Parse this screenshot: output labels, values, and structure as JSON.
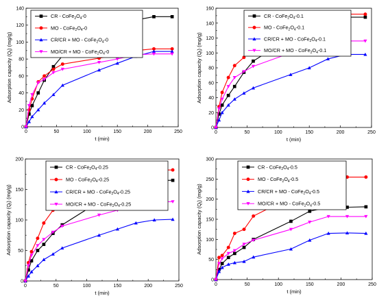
{
  "charts": [
    {
      "id": "p0",
      "type": "line",
      "xlabel": "t (min)",
      "ylabel_prefix": "Adsorption capacity (Q",
      "ylabel_sub": "t",
      "ylabel_suffix": ") (mg/g)",
      "xlim": [
        0,
        250
      ],
      "ylim": [
        0,
        140
      ],
      "xticks": [
        0,
        50,
        100,
        150,
        200,
        250
      ],
      "yticks": [
        0,
        20,
        40,
        60,
        80,
        100,
        120,
        140
      ],
      "legend_position": "top-left",
      "series": [
        {
          "lp": "CR - CoFe",
          "ls": "2",
          "lm": "O",
          "lss": "4",
          "lq": "-0",
          "color": "#000000",
          "marker": "square",
          "x": [
            0,
            5,
            10,
            20,
            30,
            45,
            60,
            120,
            150,
            180,
            210,
            240
          ],
          "y": [
            0,
            15,
            25,
            40,
            55,
            71,
            84,
            105,
            118,
            126,
            130,
            130
          ]
        },
        {
          "lp": "MO - CoFe",
          "ls": "2",
          "lm": "O",
          "lss": "4",
          "lq": "-0",
          "color": "#ff0000",
          "marker": "circle",
          "x": [
            0,
            5,
            10,
            20,
            30,
            45,
            60,
            120,
            150,
            180,
            210,
            240
          ],
          "y": [
            0,
            20,
            33,
            53,
            60,
            68,
            74,
            81,
            85,
            90,
            92,
            92
          ]
        },
        {
          "lp": "CR/CR + MO - CoFe",
          "ls": "2",
          "lm": "O",
          "lss": "4",
          "lq": "-0",
          "color": "#0000ff",
          "marker": "triangle",
          "x": [
            0,
            5,
            10,
            20,
            30,
            45,
            60,
            120,
            150,
            180,
            210,
            240
          ],
          "y": [
            0,
            6,
            12,
            20,
            28,
            38,
            49,
            67,
            75,
            83,
            89,
            89
          ]
        },
        {
          "lp": "MO/CR + MO - CoFe",
          "ls": "2",
          "lm": "O",
          "lss": "4",
          "lq": "-0",
          "color": "#ff00ff",
          "marker": "triangle-down",
          "x": [
            0,
            5,
            10,
            20,
            30,
            45,
            60,
            120,
            150,
            180,
            210,
            240
          ],
          "y": [
            0,
            25,
            38,
            52,
            56,
            64,
            68,
            76,
            80,
            85,
            86,
            86
          ]
        }
      ]
    },
    {
      "id": "p1",
      "type": "line",
      "xlabel": "t (min)",
      "ylabel_prefix": "Adsorption capacity (Q",
      "ylabel_sub": "t",
      "ylabel_suffix": ") (mg/g)",
      "xlim": [
        0,
        250
      ],
      "ylim": [
        0,
        160
      ],
      "xticks": [
        0,
        50,
        100,
        150,
        200,
        250
      ],
      "yticks": [
        0,
        20,
        40,
        60,
        80,
        100,
        120,
        140,
        160
      ],
      "legend_position": "top-right",
      "series": [
        {
          "lp": "CR - CoFe",
          "ls": "2",
          "lm": "O",
          "lss": "4",
          "lq": "-0.1",
          "color": "#000000",
          "marker": "square",
          "x": [
            0,
            5,
            10,
            20,
            30,
            45,
            60,
            120,
            150,
            180,
            210,
            240
          ],
          "y": [
            0,
            18,
            30,
            43,
            55,
            74,
            89,
            121,
            134,
            146,
            148,
            148
          ]
        },
        {
          "lp": "MO - CoFe",
          "ls": "2",
          "lm": "O",
          "lss": "4",
          "lq": "-0.1",
          "color": "#ff0000",
          "marker": "circle",
          "x": [
            0,
            5,
            10,
            20,
            30,
            45,
            60,
            120,
            150,
            180,
            210,
            240
          ],
          "y": [
            0,
            28,
            47,
            67,
            83,
            94,
            105,
            125,
            138,
            149,
            152,
            152
          ]
        },
        {
          "lp": "CR/CR + MO - CoFe",
          "ls": "2",
          "lm": "O",
          "lss": "4",
          "lq": "-0.1",
          "color": "#0000ff",
          "marker": "triangle",
          "x": [
            0,
            5,
            10,
            20,
            30,
            45,
            60,
            120,
            150,
            180,
            210,
            240
          ],
          "y": [
            0,
            10,
            20,
            30,
            38,
            46,
            53,
            71,
            80,
            92,
            98,
            98
          ]
        },
        {
          "lp": "MO/CR + MO - CoFe",
          "ls": "2",
          "lm": "O",
          "lss": "4",
          "lq": "-0.1",
          "color": "#ff00ff",
          "marker": "triangle-down",
          "x": [
            0,
            5,
            10,
            20,
            30,
            45,
            60,
            120,
            150,
            180,
            210,
            240
          ],
          "y": [
            0,
            25,
            38,
            55,
            67,
            75,
            82,
            100,
            106,
            112,
            116,
            116
          ]
        }
      ]
    },
    {
      "id": "p2",
      "type": "line",
      "xlabel": "t (min)",
      "ylabel_prefix": "Adsorption capacity (Q",
      "ylabel_sub": "t",
      "ylabel_suffix": ") (mg/g)",
      "xlim": [
        0,
        250
      ],
      "ylim": [
        0,
        200
      ],
      "xticks": [
        0,
        50,
        100,
        150,
        200,
        250
      ],
      "yticks": [
        0,
        50,
        100,
        150,
        200
      ],
      "legend_position": "top-right",
      "series": [
        {
          "lp": "CR - CoFe",
          "ls": "2",
          "lm": "O",
          "lss": "4",
          "lq": "-0.25",
          "color": "#000000",
          "marker": "square",
          "x": [
            0,
            5,
            10,
            20,
            30,
            45,
            60,
            120,
            150,
            180,
            210,
            240
          ],
          "y": [
            0,
            18,
            33,
            50,
            60,
            78,
            92,
            130,
            148,
            160,
            165,
            165
          ]
        },
        {
          "lp": "MO - CoFe",
          "ls": "2",
          "lm": "O",
          "lss": "4",
          "lq": "-0.25",
          "color": "#ff0000",
          "marker": "circle",
          "x": [
            0,
            5,
            10,
            20,
            30,
            45,
            60,
            120,
            150,
            180,
            210,
            240
          ],
          "y": [
            0,
            30,
            48,
            70,
            95,
            116,
            128,
            158,
            170,
            178,
            182,
            182
          ]
        },
        {
          "lp": "CR/CR + MO - CoFe",
          "ls": "2",
          "lm": "O",
          "lss": "4",
          "lq": "-0.25",
          "color": "#0000ff",
          "marker": "triangle",
          "x": [
            0,
            5,
            10,
            20,
            30,
            45,
            60,
            120,
            150,
            180,
            210,
            240
          ],
          "y": [
            0,
            8,
            15,
            25,
            35,
            44,
            54,
            75,
            85,
            95,
            100,
            101
          ]
        },
        {
          "lp": "MO/CR + MO - CoFe",
          "ls": "2",
          "lm": "O",
          "lss": "4",
          "lq": "-0.25",
          "color": "#ff00ff",
          "marker": "triangle-down",
          "x": [
            0,
            5,
            10,
            20,
            30,
            45,
            60,
            120,
            150,
            180,
            210,
            240
          ],
          "y": [
            0,
            25,
            42,
            58,
            68,
            80,
            90,
            108,
            116,
            125,
            130,
            130
          ]
        }
      ]
    },
    {
      "id": "p3",
      "type": "line",
      "xlabel": "t (min)",
      "ylabel_prefix": "Adsorption capacity (Q",
      "ylabel_sub": "t",
      "ylabel_suffix": ") (mg/g)",
      "xlim": [
        0,
        250
      ],
      "ylim": [
        0,
        300
      ],
      "xticks": [
        0,
        50,
        100,
        150,
        200,
        250
      ],
      "yticks": [
        0,
        50,
        100,
        150,
        200,
        250,
        300
      ],
      "legend_position": "top-right",
      "series": [
        {
          "lp": "CR - CoFe",
          "ls": "2",
          "lm": "O",
          "lss": "4",
          "lq": "-0.5",
          "color": "#000000",
          "marker": "square",
          "x": [
            0,
            5,
            10,
            20,
            30,
            45,
            60,
            120,
            150,
            180,
            210,
            240
          ],
          "y": [
            0,
            25,
            40,
            55,
            65,
            80,
            100,
            145,
            170,
            180,
            180,
            181
          ]
        },
        {
          "lp": "MO - CoFe",
          "ls": "2",
          "lm": "O",
          "lss": "4",
          "lq": "-0.5",
          "color": "#ff0000",
          "marker": "circle",
          "x": [
            0,
            5,
            10,
            20,
            30,
            45,
            60,
            120,
            150,
            180,
            210,
            240
          ],
          "y": [
            0,
            55,
            60,
            80,
            115,
            125,
            158,
            205,
            237,
            252,
            255,
            255
          ]
        },
        {
          "lp": "CR/CR + MO - CoFe",
          "ls": "2",
          "lm": "O",
          "lss": "4",
          "lq": "-0.5",
          "color": "#0000ff",
          "marker": "triangle",
          "x": [
            0,
            5,
            10,
            20,
            30,
            45,
            60,
            120,
            150,
            180,
            210,
            240
          ],
          "y": [
            0,
            20,
            30,
            38,
            42,
            45,
            56,
            76,
            98,
            115,
            116,
            115
          ]
        },
        {
          "lp": "MO/CR + MO - CoFe",
          "ls": "2",
          "lm": "O",
          "lss": "4",
          "lq": "-0.5",
          "color": "#ff00ff",
          "marker": "triangle-down",
          "x": [
            0,
            5,
            10,
            20,
            30,
            45,
            60,
            120,
            150,
            180,
            210,
            240
          ],
          "y": [
            0,
            40,
            52,
            65,
            72,
            88,
            98,
            125,
            143,
            157,
            157,
            157
          ]
        }
      ]
    }
  ]
}
